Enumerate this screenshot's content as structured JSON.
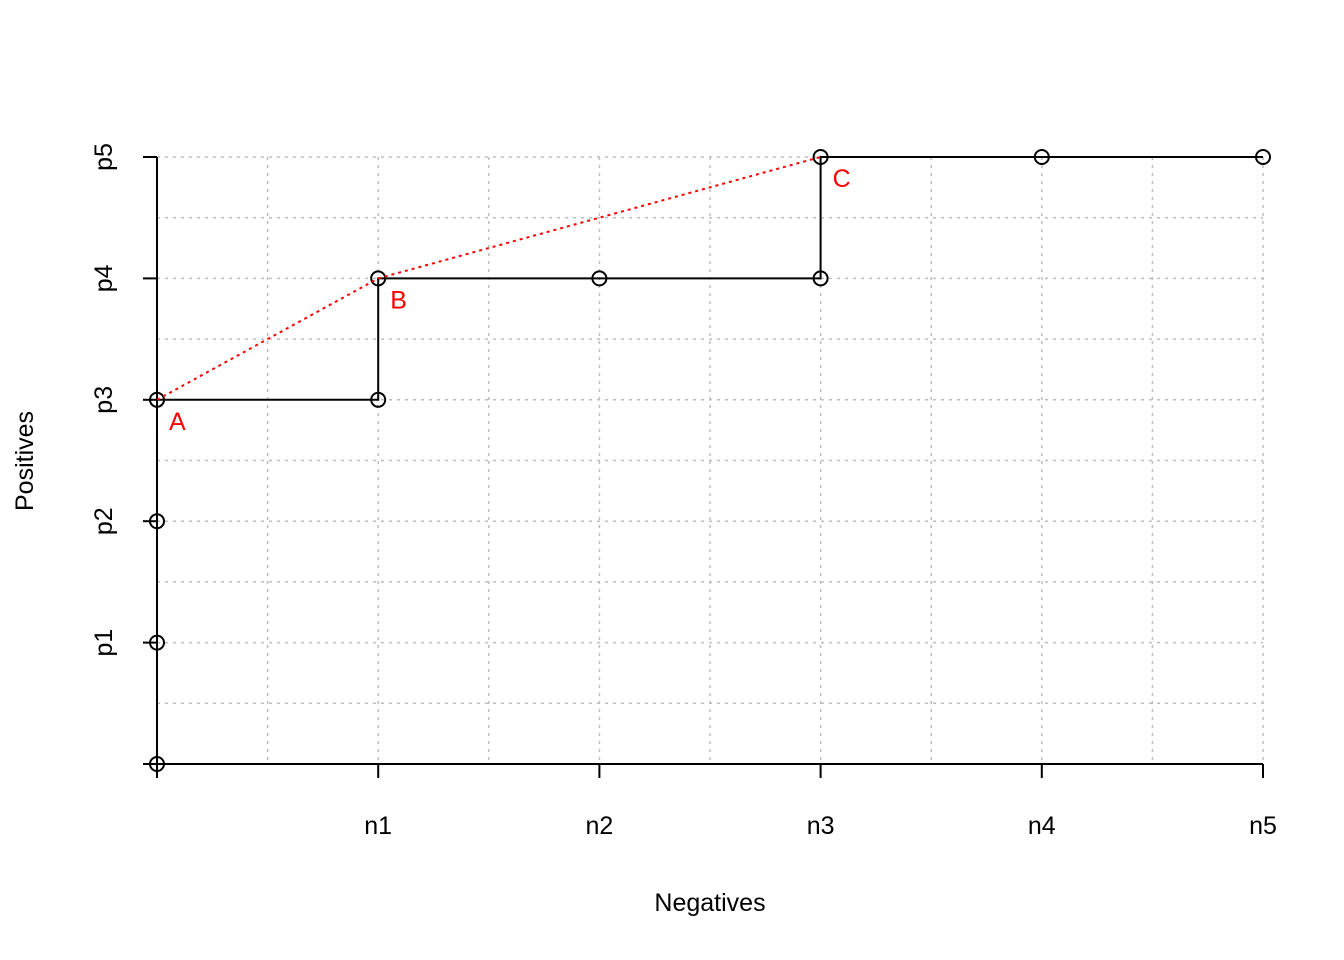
{
  "chart_data": {
    "type": "line",
    "title": "",
    "xlabel": "Negatives",
    "ylabel": "Positives",
    "xlim": [
      0,
      5
    ],
    "ylim": [
      0,
      5
    ],
    "x_ticks": [
      {
        "value": 0,
        "label": ""
      },
      {
        "value": 1,
        "label": "n1"
      },
      {
        "value": 2,
        "label": "n2"
      },
      {
        "value": 3,
        "label": "n3"
      },
      {
        "value": 4,
        "label": "n4"
      },
      {
        "value": 5,
        "label": "n5"
      }
    ],
    "y_ticks": [
      {
        "value": 0,
        "label": ""
      },
      {
        "value": 1,
        "label": "p1"
      },
      {
        "value": 2,
        "label": "p2"
      },
      {
        "value": 3,
        "label": "p3"
      },
      {
        "value": 4,
        "label": "p4"
      },
      {
        "value": 5,
        "label": "p5"
      }
    ],
    "grid": true,
    "grid_step": 0.5,
    "series": [
      {
        "style": "step-line-with-points",
        "color": "#000000",
        "points": [
          {
            "x": 0,
            "y": 0
          },
          {
            "x": 0,
            "y": 1
          },
          {
            "x": 0,
            "y": 2
          },
          {
            "x": 0,
            "y": 3
          },
          {
            "x": 1,
            "y": 3
          },
          {
            "x": 1,
            "y": 4
          },
          {
            "x": 2,
            "y": 4
          },
          {
            "x": 3,
            "y": 4
          },
          {
            "x": 3,
            "y": 5
          },
          {
            "x": 4,
            "y": 5
          },
          {
            "x": 5,
            "y": 5
          }
        ]
      },
      {
        "style": "dotted-line",
        "color": "#ff0000",
        "points": [
          {
            "x": 0,
            "y": 3
          },
          {
            "x": 1,
            "y": 4
          },
          {
            "x": 3,
            "y": 5
          }
        ]
      }
    ],
    "annotations": [
      {
        "text": "A",
        "x": 0,
        "y": 3,
        "color": "#ff0000"
      },
      {
        "text": "B",
        "x": 1,
        "y": 4,
        "color": "#ff0000"
      },
      {
        "text": "C",
        "x": 3,
        "y": 5,
        "color": "#ff0000"
      }
    ]
  }
}
